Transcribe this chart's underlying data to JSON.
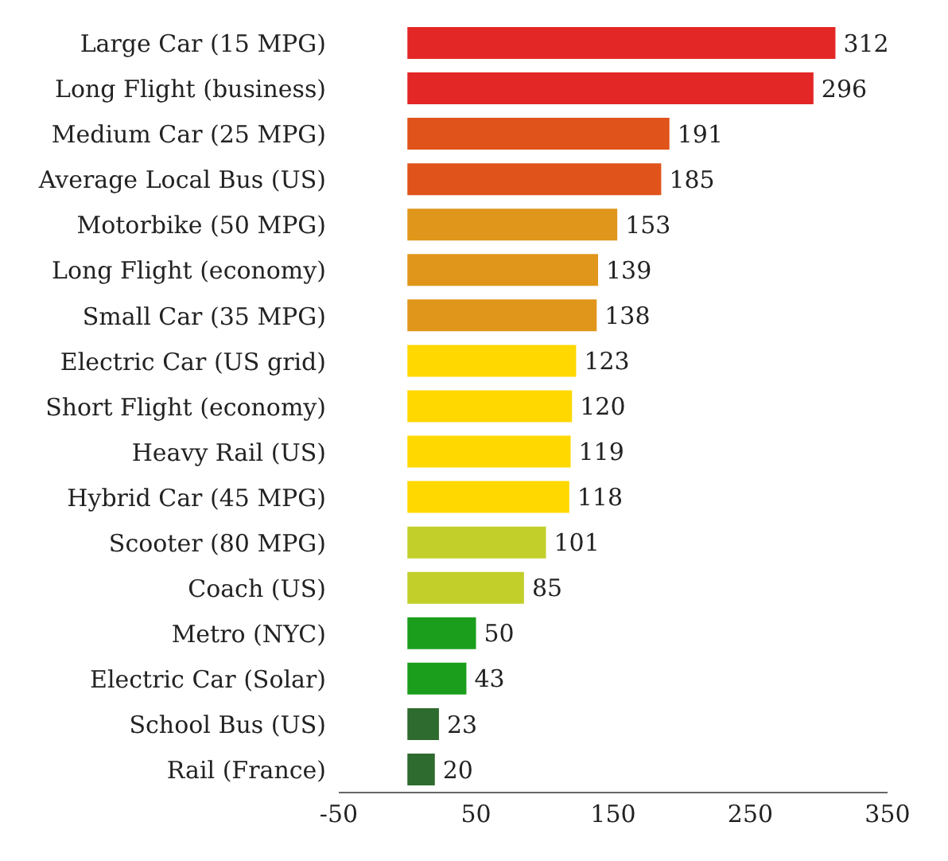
{
  "chart_data": {
    "type": "bar",
    "orientation": "horizontal",
    "categories": [
      "Large Car (15 MPG)",
      "Long Flight (business)",
      "Medium Car (25 MPG)",
      "Average Local Bus (US)",
      "Motorbike (50 MPG)",
      "Long Flight (economy)",
      "Small Car (35 MPG)",
      "Electric Car (US grid)",
      "Short Flight (economy)",
      "Heavy Rail (US)",
      "Hybrid Car (45 MPG)",
      "Scooter (80 MPG)",
      "Coach (US)",
      "Metro (NYC)",
      "Electric Car (Solar)",
      "School Bus (US)",
      "Rail (France)"
    ],
    "values": [
      312,
      296,
      191,
      185,
      153,
      139,
      138,
      123,
      120,
      119,
      118,
      101,
      85,
      50,
      43,
      23,
      20
    ],
    "colors": [
      "#e32726",
      "#e32726",
      "#e0531a",
      "#e0531a",
      "#e0961b",
      "#e0961b",
      "#e0961b",
      "#ffd800",
      "#ffd800",
      "#ffd800",
      "#ffd800",
      "#c2cf2b",
      "#c2cf2b",
      "#1b9e1b",
      "#1b9e1b",
      "#2e6b2e",
      "#2e6b2e"
    ],
    "xlim": [
      -50,
      350
    ],
    "xticks": [
      -50,
      50,
      150,
      250,
      350
    ],
    "data_labels": true,
    "grid": false,
    "legend": false
  }
}
